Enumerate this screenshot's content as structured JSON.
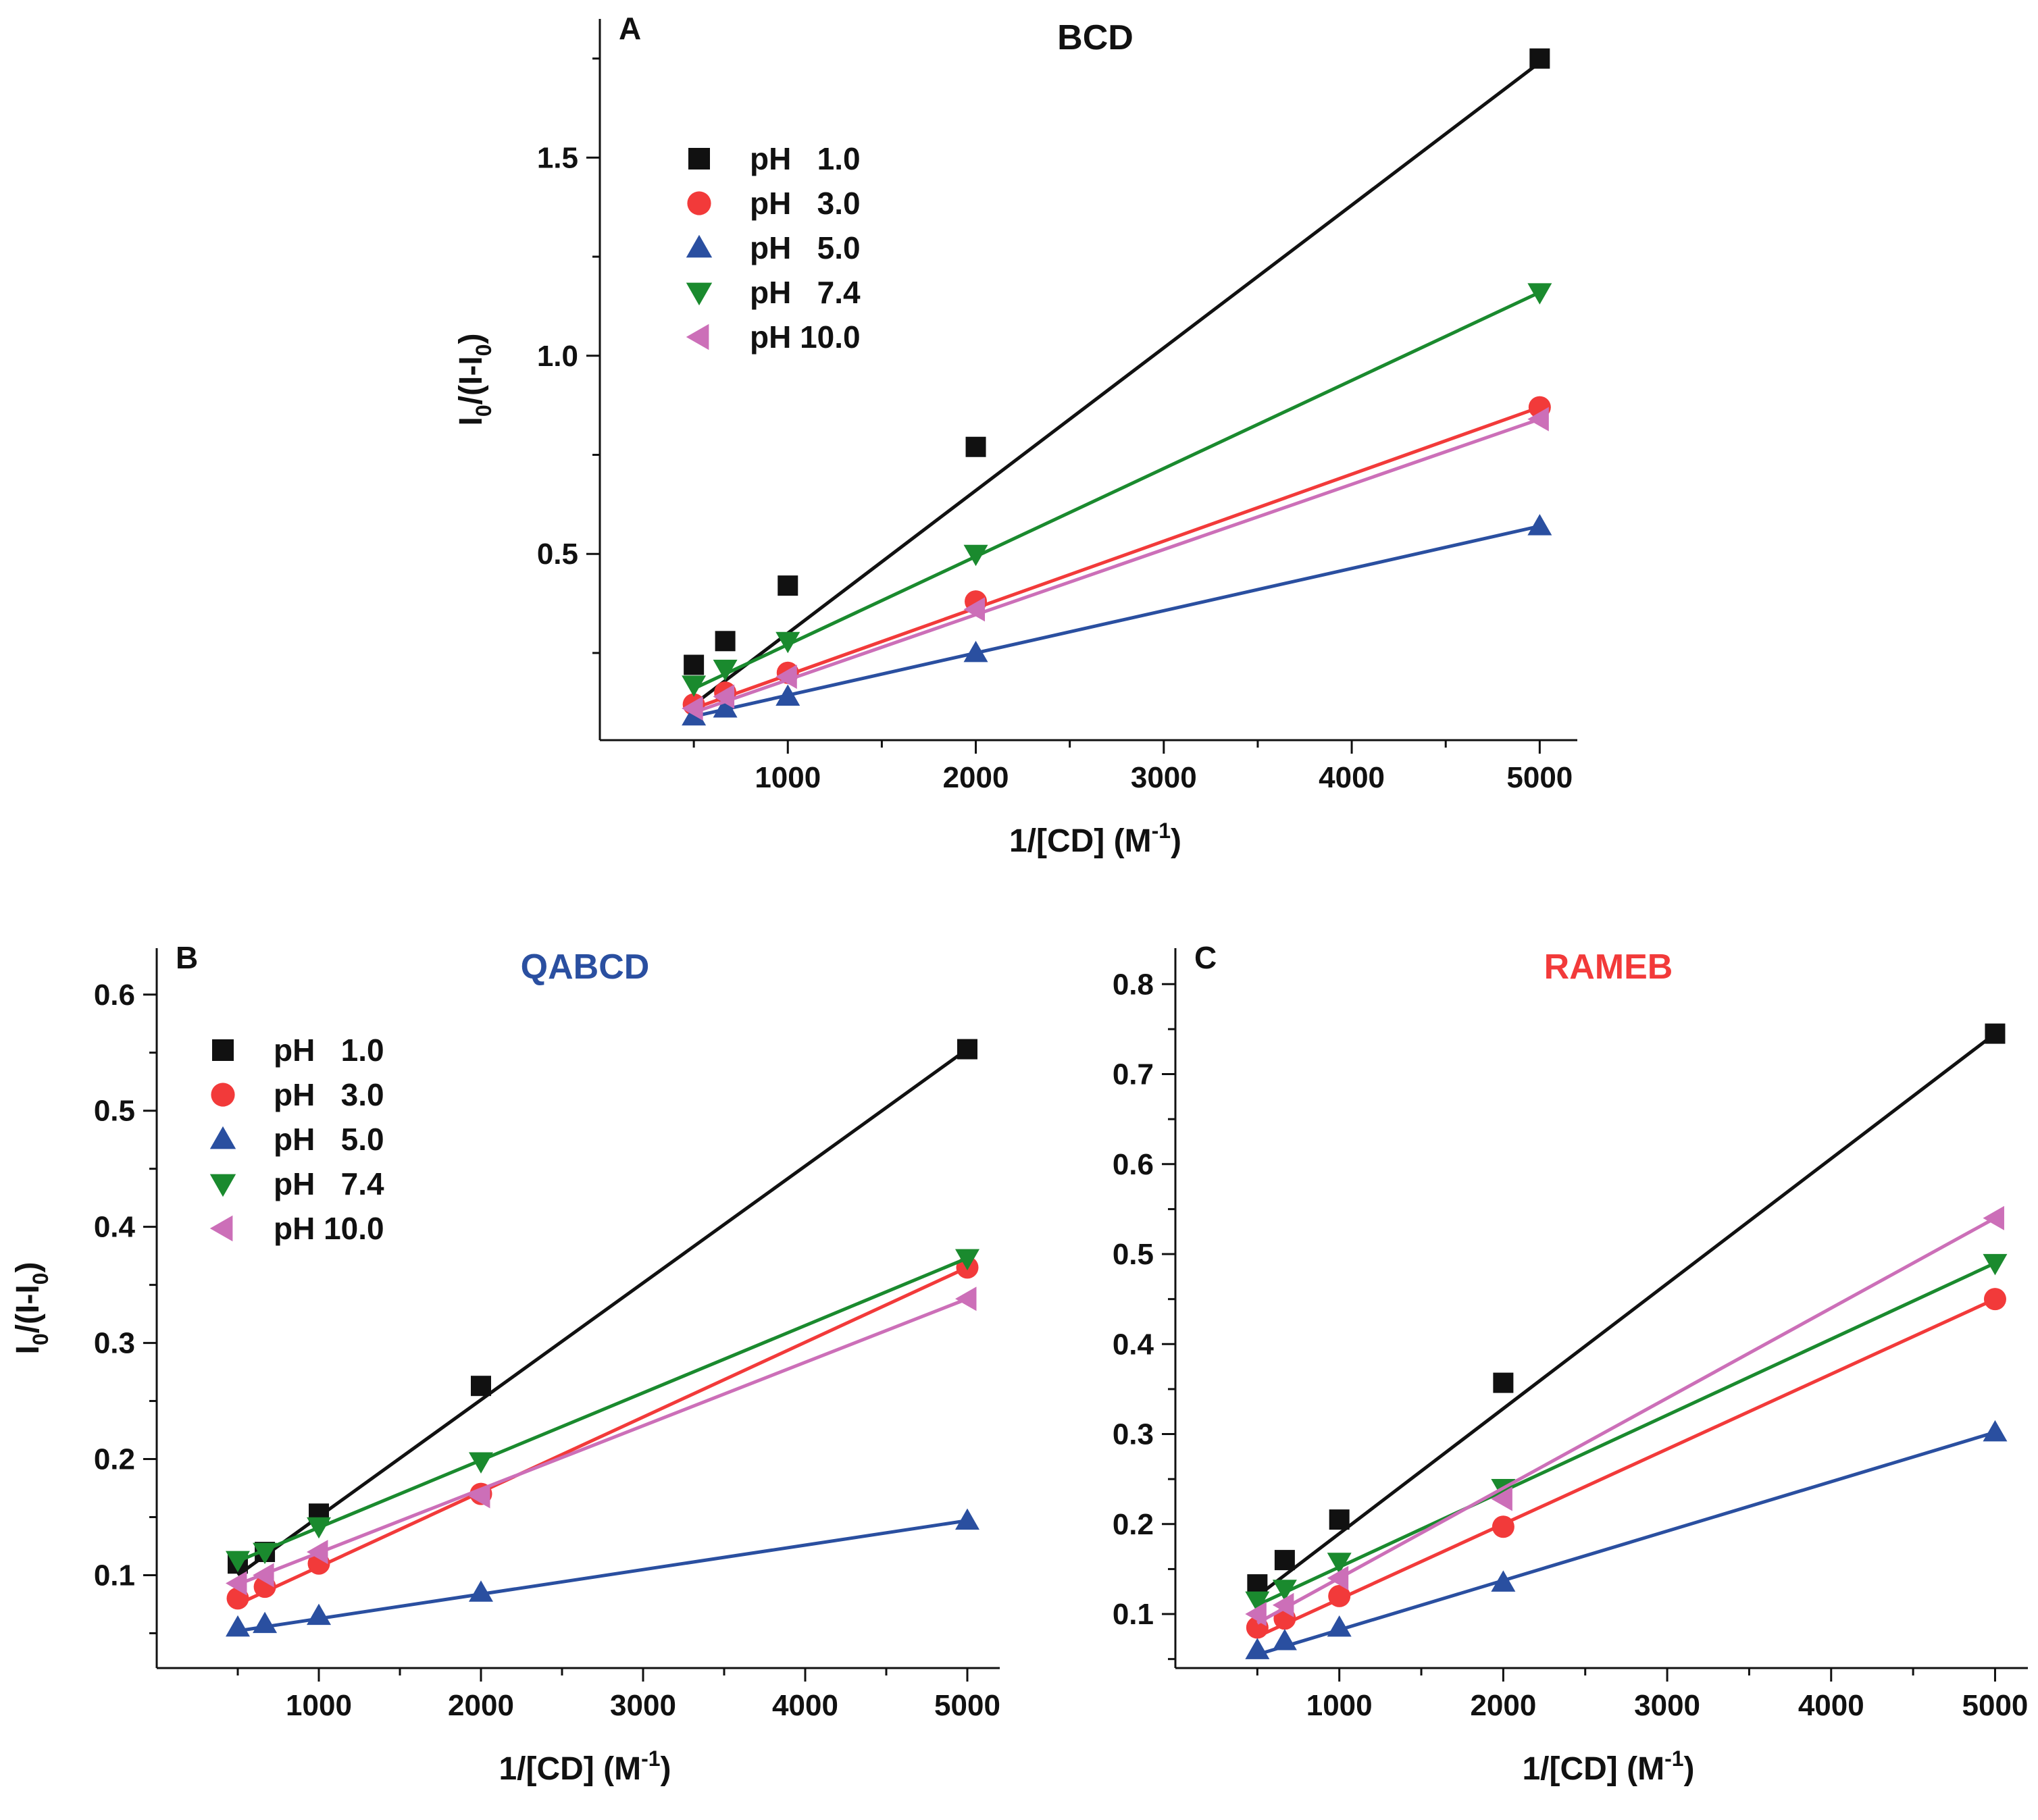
{
  "figure": {
    "alt": "Double-reciprocal plots of fluorescence enhancement versus 1/[CD] at five pH values for three cyclodextrins"
  },
  "legend_labels": [
    "pH   1.0",
    "pH   3.0",
    "pH   5.0",
    "pH   7.4",
    "pH 10.0"
  ],
  "series_colors": [
    "#111111",
    "#f23a3a",
    "#2a4fa0",
    "#1a8a2e",
    "#cc6fb8"
  ],
  "series_markers": [
    "square",
    "circle",
    "triangle-up",
    "triangle-down",
    "triangle-left"
  ],
  "chart_data": [
    {
      "type": "scatter",
      "panel_label": "A",
      "title": "BCD",
      "title_color": "#111111",
      "xlabel": "1/[CD] (M",
      "xlabel_sup": "-1",
      "ylabel": {
        "base": "I",
        "sub1": "0",
        "mid": "/(I-I",
        "sub2": "0",
        "end": ")"
      },
      "xlim": [
        0,
        5200
      ],
      "ylim": [
        0.03,
        1.85
      ],
      "xticks": [
        1000,
        2000,
        3000,
        4000,
        5000
      ],
      "xtick_labels": [
        "1000",
        "2000",
        "3000",
        "4000",
        "5000"
      ],
      "xminor": [
        500,
        1500,
        2500,
        3500,
        4500
      ],
      "yticks": [
        0.5,
        1.0,
        1.5
      ],
      "ytick_labels": [
        "0.5",
        "1.0",
        "1.5"
      ],
      "yminor": [
        0.25,
        0.75,
        1.25,
        1.75
      ],
      "x": [
        500,
        667,
        1000,
        2000,
        5000
      ],
      "series": [
        {
          "name": "pH 1.0",
          "values": [
            0.22,
            0.28,
            0.42,
            0.77,
            1.75
          ],
          "fit": [
            0.12,
            1.74
          ]
        },
        {
          "name": "pH 3.0",
          "values": [
            0.12,
            0.15,
            0.2,
            0.38,
            0.87
          ],
          "fit": [
            0.11,
            0.87
          ]
        },
        {
          "name": "pH 5.0",
          "values": [
            0.09,
            0.11,
            0.14,
            0.25,
            0.57
          ],
          "fit": [
            0.09,
            0.57
          ]
        },
        {
          "name": "pH 7.4",
          "values": [
            0.17,
            0.21,
            0.28,
            0.5,
            1.16
          ],
          "fit": [
            0.16,
            1.16
          ]
        },
        {
          "name": "pH 10.0",
          "values": [
            0.11,
            0.14,
            0.19,
            0.36,
            0.84
          ],
          "fit": [
            0.1,
            0.84
          ]
        }
      ]
    },
    {
      "type": "scatter",
      "panel_label": "B",
      "title": "QABCD",
      "title_color": "#2a4fa0",
      "xlabel": "1/[CD] (M",
      "xlabel_sup": "-1",
      "ylabel": {
        "base": "I",
        "sub1": "0",
        "mid": "/(I-I",
        "sub2": "0",
        "end": ")"
      },
      "xlim": [
        0,
        5200
      ],
      "ylim": [
        0.02,
        0.64
      ],
      "xticks": [
        1000,
        2000,
        3000,
        4000,
        5000
      ],
      "xtick_labels": [
        "1000",
        "2000",
        "3000",
        "4000",
        "5000"
      ],
      "xminor": [
        500,
        1500,
        2500,
        3500,
        4500
      ],
      "yticks": [
        0.1,
        0.2,
        0.3,
        0.4,
        0.5,
        0.6
      ],
      "ytick_labels": [
        "0.1",
        "0.2",
        "0.3",
        "0.4",
        "0.5",
        "0.6"
      ],
      "yminor": [
        0.05,
        0.15,
        0.25,
        0.35,
        0.45,
        0.55
      ],
      "x": [
        500,
        667,
        1000,
        2000,
        5000
      ],
      "series": [
        {
          "name": "pH 1.0",
          "values": [
            0.11,
            0.12,
            0.153,
            0.263,
            0.553
          ],
          "fit": [
            0.1,
            0.553
          ]
        },
        {
          "name": "pH 3.0",
          "values": [
            0.08,
            0.09,
            0.11,
            0.17,
            0.365
          ],
          "fit": [
            0.075,
            0.365
          ]
        },
        {
          "name": "pH 5.0",
          "values": [
            0.055,
            0.058,
            0.065,
            0.085,
            0.147
          ],
          "fit": [
            0.052,
            0.147
          ]
        },
        {
          "name": "pH 7.4",
          "values": [
            0.113,
            0.12,
            0.142,
            0.198,
            0.373
          ],
          "fit": [
            0.112,
            0.373
          ]
        },
        {
          "name": "pH 10.0",
          "values": [
            0.093,
            0.1,
            0.12,
            0.168,
            0.338
          ],
          "fit": [
            0.092,
            0.338
          ]
        }
      ]
    },
    {
      "type": "scatter",
      "panel_label": "C",
      "title": "RAMEB",
      "title_color": "#f23a3a",
      "xlabel": "1/[CD] (M",
      "xlabel_sup": "-1",
      "ylabel": null,
      "xlim": [
        0,
        5200
      ],
      "ylim": [
        0.04,
        0.84
      ],
      "xticks": [
        1000,
        2000,
        3000,
        4000,
        5000
      ],
      "xtick_labels": [
        "1000",
        "2000",
        "3000",
        "4000",
        "5000"
      ],
      "xminor": [
        500,
        1500,
        2500,
        3500,
        4500
      ],
      "yticks": [
        0.1,
        0.2,
        0.3,
        0.4,
        0.5,
        0.6,
        0.7,
        0.8
      ],
      "ytick_labels": [
        "0.1",
        "0.2",
        "0.3",
        "0.4",
        "0.5",
        "0.6",
        "0.7",
        "0.8"
      ],
      "yminor": [
        0.05,
        0.15,
        0.25,
        0.35,
        0.45,
        0.55,
        0.65,
        0.75
      ],
      "x": [
        500,
        667,
        1000,
        2000,
        5000
      ],
      "series": [
        {
          "name": "pH 1.0",
          "values": [
            0.133,
            0.16,
            0.205,
            0.357,
            0.745
          ],
          "fit": [
            0.12,
            0.745
          ]
        },
        {
          "name": "pH 3.0",
          "values": [
            0.085,
            0.095,
            0.12,
            0.197,
            0.45
          ],
          "fit": [
            0.075,
            0.45
          ]
        },
        {
          "name": "pH 5.0",
          "values": [
            0.06,
            0.07,
            0.085,
            0.135,
            0.302
          ],
          "fit": [
            0.055,
            0.302
          ]
        },
        {
          "name": "pH 7.4",
          "values": [
            0.115,
            0.128,
            0.158,
            0.24,
            0.49
          ],
          "fit": [
            0.11,
            0.49
          ]
        },
        {
          "name": "pH 10.0",
          "values": [
            0.1,
            0.11,
            0.14,
            0.228,
            0.54
          ],
          "fit": [
            0.09,
            0.54
          ]
        }
      ]
    }
  ]
}
